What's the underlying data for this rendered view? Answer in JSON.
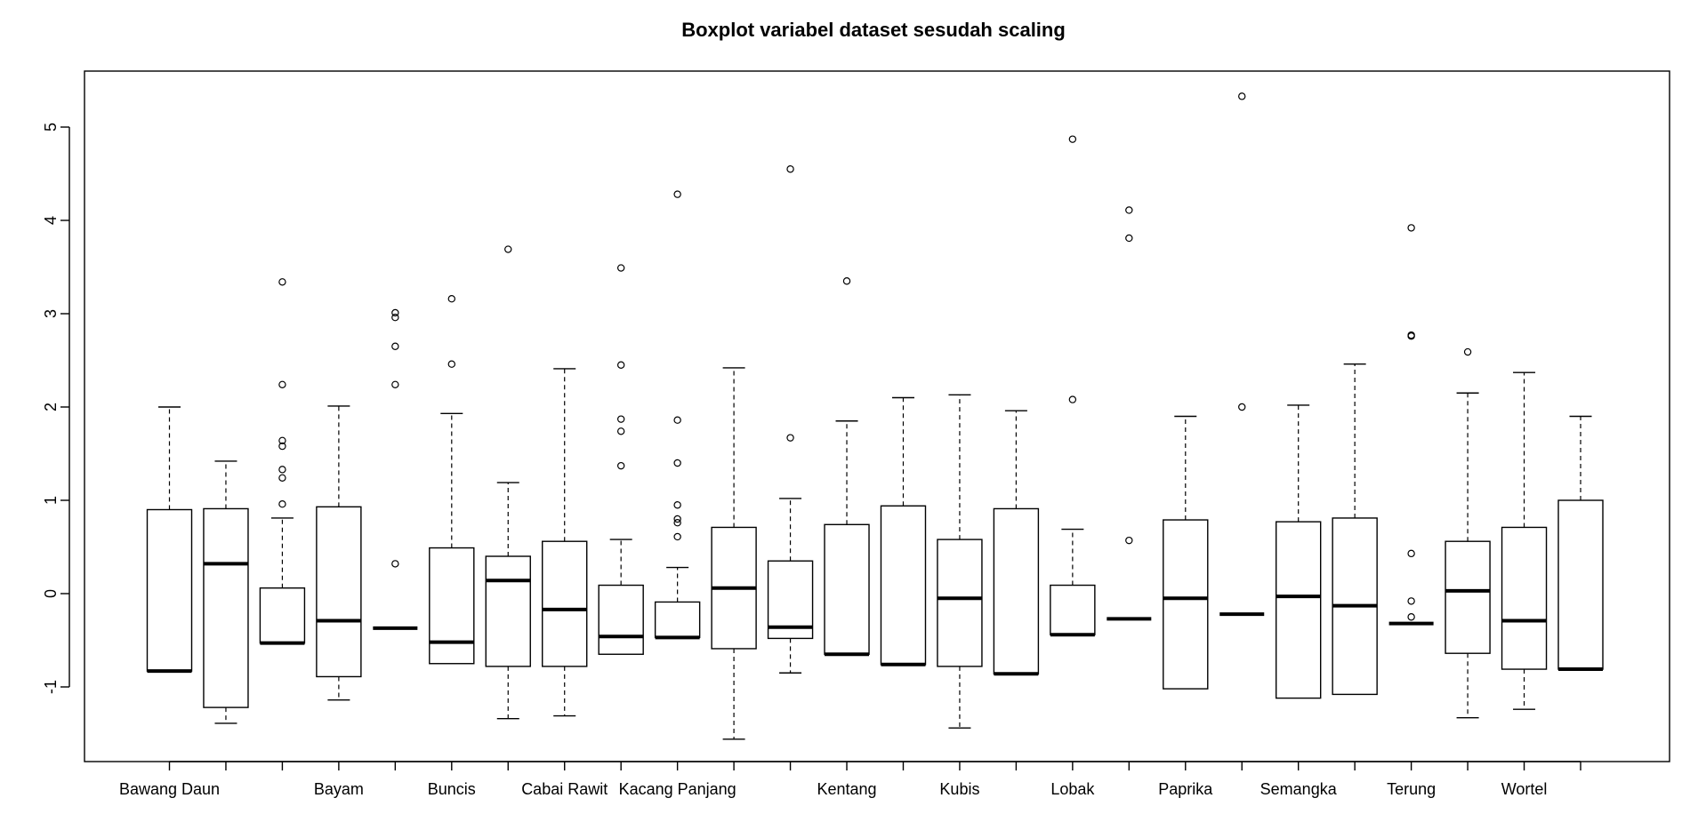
{
  "chart_data": {
    "type": "boxplot",
    "title": "Boxplot variabel dataset sesudah scaling",
    "xlabel": "",
    "ylabel": "",
    "ylim": [
      -1.8,
      5.6
    ],
    "yticks": [
      -1,
      0,
      1,
      2,
      3,
      4,
      5
    ],
    "xtick_labels": [
      "Bawang Daun",
      "",
      "",
      "Bayam",
      "",
      "Buncis",
      "",
      "Cabai Rawit",
      "",
      "Kacang Panjang",
      "",
      "",
      "Kentang",
      "",
      "Kubis",
      "",
      "Lobak",
      "",
      "Paprika",
      "",
      "Semangka",
      "",
      "Terung",
      "",
      "Wortel",
      ""
    ],
    "boxes": [
      {
        "low": -0.83,
        "q1": -0.83,
        "median": -0.83,
        "q3": 0.9,
        "high": 2.0,
        "outliers": []
      },
      {
        "low": -1.39,
        "q1": -1.22,
        "median": 0.32,
        "q3": 0.91,
        "high": 1.42,
        "outliers": []
      },
      {
        "low": -0.53,
        "q1": -0.53,
        "median": -0.53,
        "q3": 0.06,
        "high": 0.81,
        "outliers": [
          3.34,
          2.24,
          1.64,
          1.58,
          1.33,
          1.24,
          0.96
        ]
      },
      {
        "low": -1.14,
        "q1": -0.89,
        "median": -0.29,
        "q3": 0.93,
        "high": 2.01,
        "outliers": []
      },
      {
        "low": -0.37,
        "q1": -0.37,
        "median": -0.37,
        "q3": -0.37,
        "high": -0.37,
        "outliers": [
          3.01,
          2.96,
          2.65,
          2.24,
          0.32
        ]
      },
      {
        "low": -0.75,
        "q1": -0.75,
        "median": -0.52,
        "q3": 0.49,
        "high": 1.93,
        "outliers": [
          3.16,
          2.46
        ]
      },
      {
        "low": -1.34,
        "q1": -0.78,
        "median": 0.14,
        "q3": 0.4,
        "high": 1.19,
        "outliers": [
          3.69
        ]
      },
      {
        "low": -1.31,
        "q1": -0.78,
        "median": -0.17,
        "q3": 0.56,
        "high": 2.41,
        "outliers": []
      },
      {
        "low": -0.65,
        "q1": -0.65,
        "median": -0.46,
        "q3": 0.09,
        "high": 0.58,
        "outliers": [
          3.49,
          2.45,
          1.87,
          1.74,
          1.37
        ]
      },
      {
        "low": -0.47,
        "q1": -0.47,
        "median": -0.47,
        "q3": -0.09,
        "high": 0.28,
        "outliers": [
          4.28,
          1.86,
          1.4,
          0.95,
          0.8,
          0.76,
          0.61
        ]
      },
      {
        "low": -1.56,
        "q1": -0.59,
        "median": 0.06,
        "q3": 0.71,
        "high": 2.42,
        "outliers": []
      },
      {
        "low": -0.85,
        "q1": -0.48,
        "median": -0.36,
        "q3": 0.35,
        "high": 1.02,
        "outliers": [
          4.55,
          1.67
        ]
      },
      {
        "low": -0.65,
        "q1": -0.65,
        "median": -0.65,
        "q3": 0.74,
        "high": 1.85,
        "outliers": [
          3.35
        ]
      },
      {
        "low": -0.76,
        "q1": -0.76,
        "median": -0.76,
        "q3": 0.94,
        "high": 2.1,
        "outliers": []
      },
      {
        "low": -1.44,
        "q1": -0.78,
        "median": -0.05,
        "q3": 0.58,
        "high": 2.13,
        "outliers": []
      },
      {
        "low": -0.86,
        "q1": -0.86,
        "median": -0.86,
        "q3": 0.91,
        "high": 1.96,
        "outliers": []
      },
      {
        "low": -0.44,
        "q1": -0.44,
        "median": -0.44,
        "q3": 0.09,
        "high": 0.69,
        "outliers": [
          4.87,
          2.08
        ]
      },
      {
        "low": -0.27,
        "q1": -0.27,
        "median": -0.27,
        "q3": -0.27,
        "high": -0.27,
        "outliers": [
          4.11,
          3.81,
          0.57
        ]
      },
      {
        "low": -1.02,
        "q1": -1.02,
        "median": -0.05,
        "q3": 0.79,
        "high": 1.9,
        "outliers": []
      },
      {
        "low": -0.22,
        "q1": -0.22,
        "median": -0.22,
        "q3": -0.22,
        "high": -0.22,
        "outliers": [
          5.33,
          2.0
        ]
      },
      {
        "low": -1.12,
        "q1": -1.12,
        "median": -0.03,
        "q3": 0.77,
        "high": 2.02,
        "outliers": []
      },
      {
        "low": -1.08,
        "q1": -1.08,
        "median": -0.13,
        "q3": 0.81,
        "high": 2.46,
        "outliers": []
      },
      {
        "low": -0.32,
        "q1": -0.32,
        "median": -0.32,
        "q3": -0.32,
        "high": -0.32,
        "outliers": [
          3.92,
          2.77,
          2.76,
          0.43,
          -0.08,
          -0.25
        ]
      },
      {
        "low": -1.33,
        "q1": -0.64,
        "median": 0.03,
        "q3": 0.56,
        "high": 2.15,
        "outliers": [
          2.59
        ]
      },
      {
        "low": -1.24,
        "q1": -0.81,
        "median": -0.29,
        "q3": 0.71,
        "high": 2.37,
        "outliers": []
      },
      {
        "low": -0.81,
        "q1": -0.81,
        "median": -0.81,
        "q3": 1.0,
        "high": 1.9,
        "outliers": []
      }
    ]
  }
}
